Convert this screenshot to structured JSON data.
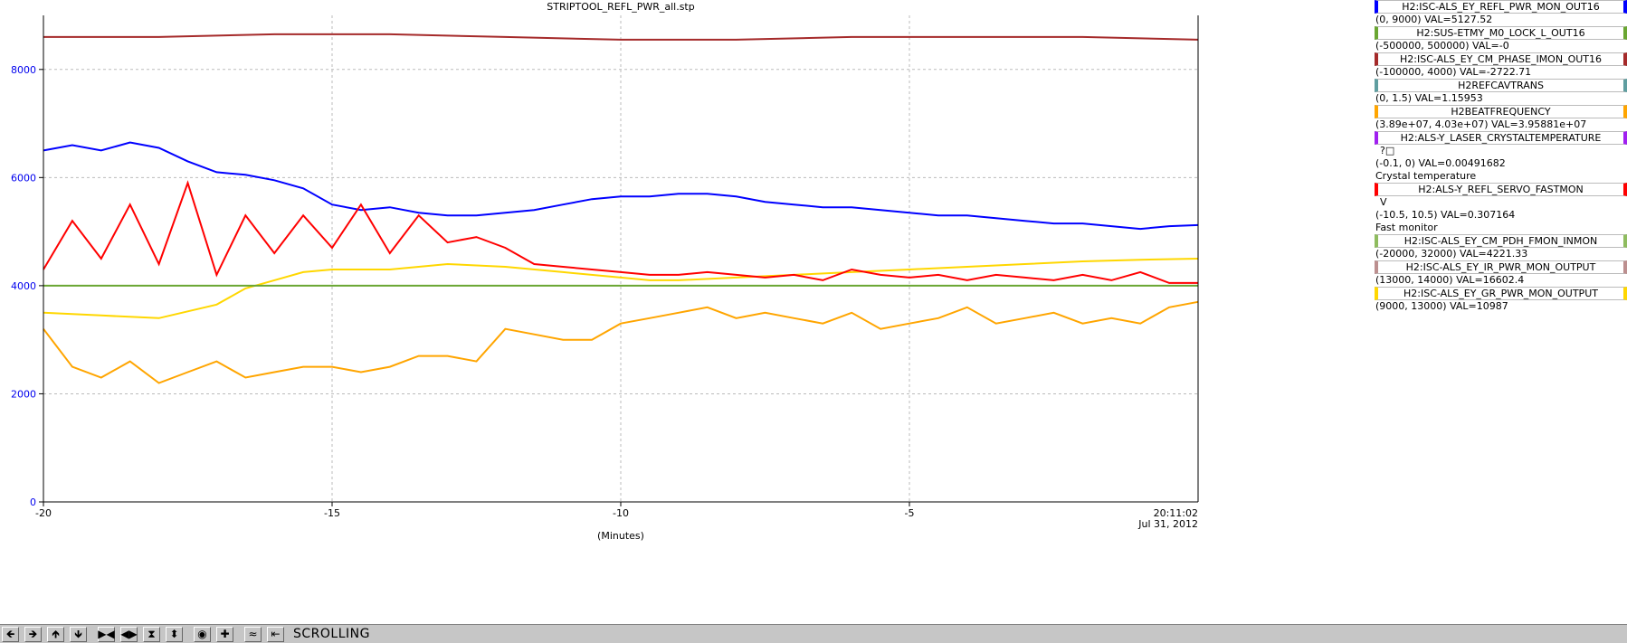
{
  "window": {
    "title": "STRIPTOOL_REFL_PWR_all.stp"
  },
  "axes": {
    "xlabel": "(Minutes)",
    "x_ticks": [
      "-20",
      "-15",
      "-10",
      "-5"
    ],
    "y_ticks": [
      "0",
      "2000",
      "4000",
      "6000",
      "8000"
    ],
    "time_label": "20:11:02",
    "date_label": "Jul 31, 2012"
  },
  "legend": [
    {
      "name": "H2:ISC-ALS_EY_REFL_PWR_MON_OUT16",
      "range": "(0, 9000)",
      "val": "VAL=5127.52",
      "units": "",
      "desc": "",
      "color": "#0000ff"
    },
    {
      "name": "H2:SUS-ETMY_M0_LOCK_L_OUT16",
      "range": "(-500000, 500000)",
      "val": "VAL=-0",
      "units": "",
      "desc": "",
      "color": "#6aa632"
    },
    {
      "name": "H2:ISC-ALS_EY_CM_PHASE_IMON_OUT16",
      "range": "(-100000, 4000)",
      "val": "VAL=-2722.71",
      "units": "",
      "desc": "",
      "color": "#a52a2a"
    },
    {
      "name": "H2REFCAVTRANS",
      "range": "(0, 1.5)",
      "val": "VAL=1.15953",
      "units": "",
      "desc": "",
      "color": "#5f9ea0"
    },
    {
      "name": "H2BEATFREQUENCY",
      "range": "(3.89e+07, 4.03e+07)",
      "val": "VAL=3.95881e+07",
      "units": "",
      "desc": "",
      "color": "#ffa500"
    },
    {
      "name": "H2:ALS-Y_LASER_CRYSTALTEMPERATURE",
      "range": "(-0.1, 0)",
      "val": "VAL=0.00491682",
      "units": "?□",
      "desc": "Crystal temperature",
      "color": "#a020f0"
    },
    {
      "name": "H2:ALS-Y_REFL_SERVO_FASTMON",
      "range": "(-10.5, 10.5)",
      "val": "VAL=0.307164",
      "units": "V",
      "desc": "Fast monitor",
      "color": "#ff0000"
    },
    {
      "name": "H2:ISC-ALS_EY_CM_PDH_FMON_INMON",
      "range": "(-20000, 32000)",
      "val": "VAL=4221.33",
      "units": "",
      "desc": "",
      "color": "#8fbc5f"
    },
    {
      "name": "H2:ISC-ALS_EY_IR_PWR_MON_OUTPUT",
      "range": "(13000, 14000)",
      "val": "VAL=16602.4",
      "units": "",
      "desc": "",
      "color": "#bc8f8f"
    },
    {
      "name": "H2:ISC-ALS_EY_GR_PWR_MON_OUTPUT",
      "range": "(9000, 13000)",
      "val": "VAL=10987",
      "units": "",
      "desc": "",
      "color": "#ffd700"
    }
  ],
  "toolbar": {
    "status": "SCROLLING",
    "buttons": [
      {
        "icon": "arrow-left-icon",
        "glyph": "🡸"
      },
      {
        "icon": "arrow-right-icon",
        "glyph": "🡺"
      },
      {
        "icon": "arrow-up-icon",
        "glyph": "🡹"
      },
      {
        "icon": "arrow-down-icon",
        "glyph": "🡻"
      },
      {
        "icon": "zoom-in-x-icon",
        "glyph": "▶◀"
      },
      {
        "icon": "zoom-out-x-icon",
        "glyph": "◀▶"
      },
      {
        "icon": "zoom-in-y-icon",
        "glyph": "⧗"
      },
      {
        "icon": "zoom-out-y-icon",
        "glyph": "⬍"
      },
      {
        "icon": "record-icon",
        "glyph": "◉"
      },
      {
        "icon": "crosshair-icon",
        "glyph": "✚"
      },
      {
        "icon": "auto-scale-icon",
        "glyph": "≈"
      },
      {
        "icon": "refresh-icon",
        "glyph": "⇤"
      }
    ]
  },
  "chart_data": {
    "type": "line",
    "title": "STRIPTOOL_REFL_PWR_all.stp",
    "xlabel": "(Minutes)",
    "ylabel": "",
    "xlim": [
      -20,
      0
    ],
    "ylim": [
      0,
      9000
    ],
    "grid": true,
    "legend_position": "right",
    "series": [
      {
        "name": "H2:ISC-ALS_EY_REFL_PWR_MON_OUT16",
        "color": "#0000ff",
        "x": [
          -20,
          -19.5,
          -19,
          -18.5,
          -18,
          -17.5,
          -17,
          -16.5,
          -16,
          -15.5,
          -15,
          -14.5,
          -14,
          -13.5,
          -13,
          -12.5,
          -12,
          -11.5,
          -11,
          -10.5,
          -10,
          -9.5,
          -9,
          -8.5,
          -8,
          -7.5,
          -7,
          -6.5,
          -6,
          -5.5,
          -5,
          -4.5,
          -4,
          -3.5,
          -3,
          -2.5,
          -2,
          -1.5,
          -1,
          -0.5,
          0
        ],
        "y": [
          6500,
          6600,
          6500,
          6650,
          6550,
          6300,
          6100,
          6050,
          5950,
          5800,
          5500,
          5400,
          5450,
          5350,
          5300,
          5300,
          5350,
          5400,
          5500,
          5600,
          5650,
          5650,
          5700,
          5700,
          5650,
          5550,
          5500,
          5450,
          5450,
          5400,
          5350,
          5300,
          5300,
          5250,
          5200,
          5150,
          5150,
          5100,
          5050,
          5100,
          5120
        ]
      },
      {
        "name": "H2:ISC-ALS_EY_GR_PWR_MON_OUTPUT",
        "color": "#ffd700",
        "x": [
          -20,
          -19,
          -18,
          -17,
          -16.5,
          -16,
          -15.5,
          -15,
          -14,
          -13,
          -12,
          -11,
          -10,
          -9.5,
          -9,
          -8,
          -7,
          -6,
          -5,
          -4,
          -3,
          -2,
          -1,
          0
        ],
        "y": [
          3500,
          3450,
          3400,
          3650,
          3950,
          4100,
          4250,
          4300,
          4300,
          4400,
          4350,
          4250,
          4150,
          4100,
          4100,
          4150,
          4200,
          4250,
          4300,
          4350,
          4400,
          4450,
          4480,
          4500
        ]
      },
      {
        "name": "H2:ALS-Y_REFL_SERVO_FASTMON",
        "color": "#ff0000",
        "x": [
          -20,
          -19.5,
          -19,
          -18.5,
          -18,
          -17.5,
          -17,
          -16.5,
          -16,
          -15.5,
          -15,
          -14.5,
          -14,
          -13.5,
          -13,
          -12.5,
          -12,
          -11.5,
          -11,
          -10.5,
          -10,
          -9.5,
          -9,
          -8.5,
          -8,
          -7.5,
          -7,
          -6.5,
          -6,
          -5.5,
          -5,
          -4.5,
          -4,
          -3.5,
          -3,
          -2.5,
          -2,
          -1.5,
          -1,
          -0.5,
          0
        ],
        "y": [
          4300,
          5200,
          4500,
          5500,
          4400,
          5900,
          4200,
          5300,
          4600,
          5300,
          4700,
          5500,
          4600,
          5300,
          4800,
          4900,
          4700,
          4400,
          4350,
          4300,
          4250,
          4200,
          4200,
          4250,
          4200,
          4150,
          4200,
          4100,
          4300,
          4200,
          4150,
          4200,
          4100,
          4200,
          4150,
          4100,
          4200,
          4100,
          4250,
          4050,
          4050
        ]
      },
      {
        "name": "H2BEATFREQUENCY",
        "color": "#ffa500",
        "x": [
          -20,
          -19.5,
          -19,
          -18.5,
          -18,
          -17.5,
          -17,
          -16.5,
          -16,
          -15.5,
          -15,
          -14.5,
          -14,
          -13.5,
          -13,
          -12.5,
          -12,
          -11.5,
          -11,
          -10.5,
          -10,
          -9.5,
          -9,
          -8.5,
          -8,
          -7.5,
          -7,
          -6.5,
          -6,
          -5.5,
          -5,
          -4.5,
          -4,
          -3.5,
          -3,
          -2.5,
          -2,
          -1.5,
          -1,
          -0.5,
          0
        ],
        "y": [
          3200,
          2500,
          2300,
          2600,
          2200,
          2400,
          2600,
          2300,
          2400,
          2500,
          2500,
          2400,
          2500,
          2700,
          2700,
          2600,
          3200,
          3100,
          3000,
          3000,
          3300,
          3400,
          3500,
          3600,
          3400,
          3500,
          3400,
          3300,
          3500,
          3200,
          3300,
          3400,
          3600,
          3300,
          3400,
          3500,
          3300,
          3400,
          3300,
          3600,
          3700
        ]
      },
      {
        "name": "H2:ISC-ALS_EY_CM_PHASE_IMON_OUT16",
        "color": "#a52a2a",
        "x": [
          -20,
          -18,
          -16,
          -14,
          -12,
          -10,
          -8,
          -6,
          -4,
          -2,
          0
        ],
        "y": [
          8600,
          8600,
          8650,
          8650,
          8600,
          8550,
          8550,
          8600,
          8600,
          8600,
          8550
        ]
      },
      {
        "name": "H2:SUS-ETMY_M0_LOCK_L_OUT16",
        "color": "#6aa632",
        "x": [
          -20,
          0
        ],
        "y": [
          4000,
          4000
        ]
      }
    ]
  }
}
